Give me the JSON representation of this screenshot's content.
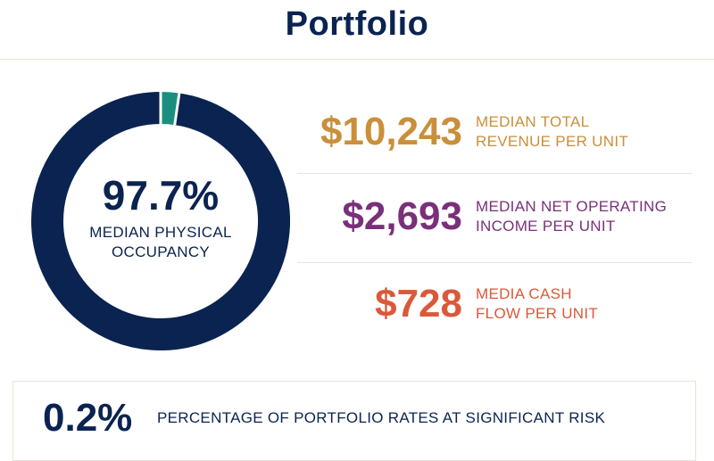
{
  "header": {
    "title": "Portfolio"
  },
  "colors": {
    "navy": "#0b2350",
    "teal": "#1a8f7f",
    "gold": "#c98f3a",
    "purple": "#7a2f7a",
    "orange": "#d9593a"
  },
  "chart_data": {
    "type": "pie",
    "variant": "donut",
    "slices": [
      {
        "value": 97.7,
        "color": "#0b2350"
      },
      {
        "value": 2.3,
        "color": "#1a8f7f"
      }
    ],
    "center_value": "97.7%",
    "center_label_line1": "MEDIAN PHYSICAL",
    "center_label_line2": "OCCUPANCY"
  },
  "stats": [
    {
      "value": "$10,243",
      "label_line1": "MEDIAN TOTAL",
      "label_line2": "REVENUE PER UNIT",
      "color": "#c98f3a"
    },
    {
      "value": "$2,693",
      "label_line1": "MEDIAN NET OPERATING",
      "label_line2": "INCOME PER UNIT",
      "color": "#7a2f7a"
    },
    {
      "value": "$728",
      "label_line1": "MEDIA CASH",
      "label_line2": "FLOW PER UNIT",
      "color": "#d9593a"
    }
  ],
  "risk": {
    "value": "0.2%",
    "label": "PERCENTAGE OF PORTFOLIO RATES AT SIGNIFICANT RISK"
  }
}
